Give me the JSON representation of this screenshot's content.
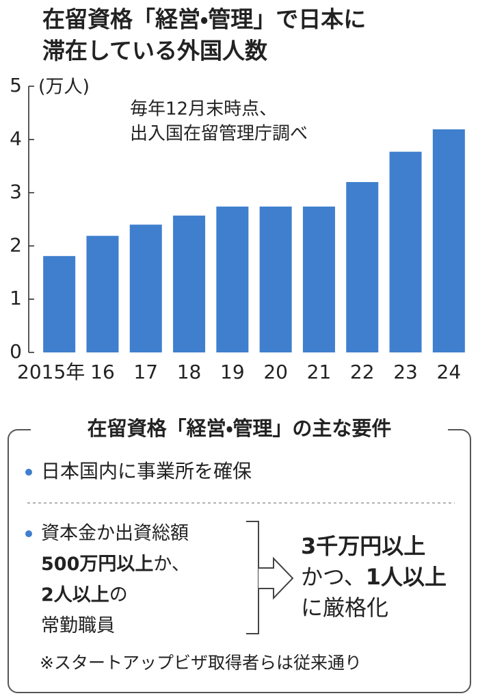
{
  "chart_data": {
    "type": "bar",
    "title": [
      "在留資格「経営・管理」で日本に",
      "滞在している外国人数"
    ],
    "y_label": "(万人)",
    "note": [
      "毎年12月末時点、",
      "出入国在留管理庁調べ"
    ],
    "categories": [
      "2015年",
      "16",
      "17",
      "18",
      "19",
      "20",
      "21",
      "22",
      "23",
      "24"
    ],
    "values": [
      1.81,
      2.19,
      2.4,
      2.57,
      2.74,
      2.74,
      2.74,
      3.2,
      3.77,
      4.19
    ],
    "color": "#3f7fce",
    "ylim": [
      0,
      5
    ],
    "yticks": [
      0,
      1,
      2,
      3,
      4,
      5
    ]
  },
  "requirements": {
    "title": "在留資格「経営・管理」の主な要件",
    "item1": "日本国内に事業所を確保",
    "before": [
      [
        {
          "text": "資本金か出資総額"
        }
      ],
      [
        {
          "text": "500万円以上",
          "bold": true
        },
        {
          "text": "か、"
        }
      ],
      [
        {
          "text": "2人以上",
          "bold": true
        },
        {
          "text": "の"
        }
      ],
      [
        {
          "text": "常勤職員"
        }
      ]
    ],
    "after": [
      [
        {
          "text": "3千万円以上",
          "bold": true
        }
      ],
      [
        {
          "text": "かつ、"
        },
        {
          "text": "1人以上",
          "bold": true
        }
      ],
      [
        {
          "text": "に厳格化"
        }
      ]
    ],
    "footnote": "※スタートアップビザ取得者らは従来通り"
  }
}
